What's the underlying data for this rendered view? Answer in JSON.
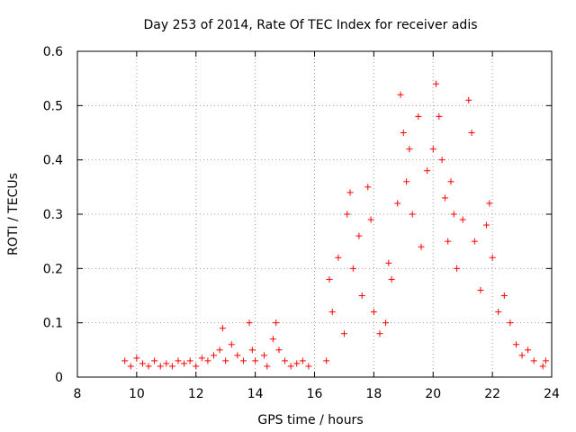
{
  "chart_data": {
    "type": "scatter",
    "title": "Day 253 of 2014, Rate Of TEC Index for receiver adis",
    "xlabel": "GPS time / hours",
    "ylabel": "ROTI / TECUs",
    "xlim": [
      8,
      24
    ],
    "ylim": [
      0,
      0.6
    ],
    "xticks": [
      8,
      10,
      12,
      14,
      16,
      18,
      20,
      22,
      24
    ],
    "xtick_labels": [
      "8",
      "10",
      "12",
      "14",
      "16",
      "18",
      "20",
      "22",
      "24"
    ],
    "yticks": [
      0,
      0.1,
      0.2,
      0.3,
      0.4,
      0.5,
      0.6
    ],
    "ytick_labels": [
      "0",
      "0.1",
      "0.2",
      "0.3",
      "0.4",
      "0.5",
      "0.6"
    ],
    "grid": true,
    "marker": "+",
    "color": "#ff0000",
    "series": [
      {
        "name": "ROTI",
        "points": [
          [
            9.6,
            0.03
          ],
          [
            9.8,
            0.02
          ],
          [
            10.0,
            0.035
          ],
          [
            10.2,
            0.025
          ],
          [
            10.4,
            0.02
          ],
          [
            10.6,
            0.03
          ],
          [
            10.8,
            0.02
          ],
          [
            11.0,
            0.025
          ],
          [
            11.2,
            0.02
          ],
          [
            11.4,
            0.03
          ],
          [
            11.6,
            0.025
          ],
          [
            11.8,
            0.03
          ],
          [
            12.0,
            0.02
          ],
          [
            12.2,
            0.035
          ],
          [
            12.4,
            0.03
          ],
          [
            12.6,
            0.04
          ],
          [
            12.8,
            0.05
          ],
          [
            12.9,
            0.09
          ],
          [
            13.0,
            0.03
          ],
          [
            13.2,
            0.06
          ],
          [
            13.4,
            0.04
          ],
          [
            13.6,
            0.03
          ],
          [
            13.8,
            0.1
          ],
          [
            13.9,
            0.05
          ],
          [
            14.0,
            0.03
          ],
          [
            14.3,
            0.04
          ],
          [
            14.4,
            0.02
          ],
          [
            14.6,
            0.07
          ],
          [
            14.7,
            0.1
          ],
          [
            14.8,
            0.05
          ],
          [
            15.0,
            0.03
          ],
          [
            15.2,
            0.02
          ],
          [
            15.4,
            0.025
          ],
          [
            15.6,
            0.03
          ],
          [
            15.8,
            0.02
          ],
          [
            16.4,
            0.03
          ],
          [
            16.5,
            0.18
          ],
          [
            16.6,
            0.12
          ],
          [
            16.8,
            0.22
          ],
          [
            17.0,
            0.08
          ],
          [
            17.1,
            0.3
          ],
          [
            17.2,
            0.34
          ],
          [
            17.3,
            0.2
          ],
          [
            17.5,
            0.26
          ],
          [
            17.6,
            0.15
          ],
          [
            17.8,
            0.35
          ],
          [
            17.9,
            0.29
          ],
          [
            18.0,
            0.12
          ],
          [
            18.2,
            0.08
          ],
          [
            18.4,
            0.1
          ],
          [
            18.5,
            0.21
          ],
          [
            18.6,
            0.18
          ],
          [
            18.8,
            0.32
          ],
          [
            18.9,
            0.52
          ],
          [
            19.0,
            0.45
          ],
          [
            19.1,
            0.36
          ],
          [
            19.2,
            0.42
          ],
          [
            19.3,
            0.3
          ],
          [
            19.5,
            0.48
          ],
          [
            19.6,
            0.24
          ],
          [
            19.8,
            0.38
          ],
          [
            20.0,
            0.42
          ],
          [
            20.1,
            0.54
          ],
          [
            20.2,
            0.48
          ],
          [
            20.3,
            0.4
          ],
          [
            20.4,
            0.33
          ],
          [
            20.5,
            0.25
          ],
          [
            20.6,
            0.36
          ],
          [
            20.7,
            0.3
          ],
          [
            20.8,
            0.2
          ],
          [
            21.0,
            0.29
          ],
          [
            21.2,
            0.51
          ],
          [
            21.3,
            0.45
          ],
          [
            21.4,
            0.25
          ],
          [
            21.6,
            0.16
          ],
          [
            21.8,
            0.28
          ],
          [
            21.9,
            0.32
          ],
          [
            22.0,
            0.22
          ],
          [
            22.2,
            0.12
          ],
          [
            22.4,
            0.15
          ],
          [
            22.6,
            0.1
          ],
          [
            22.8,
            0.06
          ],
          [
            23.0,
            0.04
          ],
          [
            23.2,
            0.05
          ],
          [
            23.4,
            0.03
          ],
          [
            23.7,
            0.02
          ],
          [
            23.8,
            0.03
          ]
        ]
      }
    ]
  }
}
